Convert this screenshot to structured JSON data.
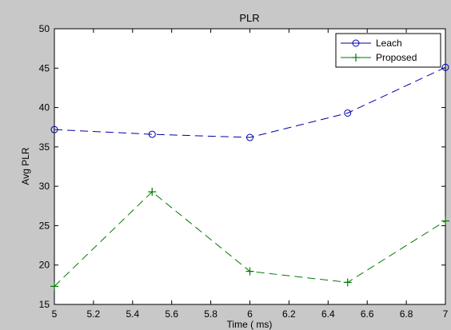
{
  "chart_data": {
    "type": "line",
    "title": "PLR",
    "xlabel": "Time ( ms)",
    "ylabel": "Avg PLR",
    "xlim": [
      5,
      7
    ],
    "ylim": [
      15,
      50
    ],
    "x_ticks": [
      "5",
      "5.2",
      "5.4",
      "5.6",
      "5.8",
      "6",
      "6.2",
      "6.4",
      "6.6",
      "6.8",
      "7"
    ],
    "y_ticks": [
      "15",
      "20",
      "25",
      "30",
      "35",
      "40",
      "45",
      "50"
    ],
    "grid": false,
    "legend_position": "top-right",
    "x": [
      5,
      5.5,
      6,
      6.5,
      7
    ],
    "series": [
      {
        "name": "Leach",
        "values": [
          37.2,
          36.6,
          36.2,
          39.3,
          45.1
        ],
        "color": "#0000aa",
        "marker": "circle",
        "line_style": "dashed"
      },
      {
        "name": "Proposed",
        "values": [
          17.3,
          29.3,
          19.2,
          17.8,
          25.6
        ],
        "color": "#007a00",
        "marker": "plus",
        "line_style": "dashed"
      }
    ]
  },
  "colors": {
    "figure_background": "#c8c8c8",
    "plot_background": "#ffffff"
  }
}
